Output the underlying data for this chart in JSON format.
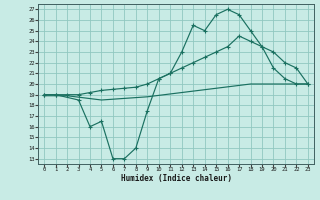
{
  "bg_color": "#c8ebe5",
  "grid_color": "#90c8c0",
  "line_color": "#1a7060",
  "xlim": [
    -0.5,
    23.5
  ],
  "ylim": [
    12.5,
    27.5
  ],
  "xticks": [
    0,
    1,
    2,
    3,
    4,
    5,
    6,
    7,
    8,
    9,
    10,
    11,
    12,
    13,
    14,
    15,
    16,
    17,
    18,
    19,
    20,
    21,
    22,
    23
  ],
  "yticks": [
    13,
    14,
    15,
    16,
    17,
    18,
    19,
    20,
    21,
    22,
    23,
    24,
    25,
    26,
    27
  ],
  "xlabel": "Humidex (Indice chaleur)",
  "line1_x": [
    0,
    1,
    3,
    4,
    5,
    6,
    7,
    8,
    9,
    10,
    11,
    12,
    13,
    14,
    15,
    16,
    17,
    18,
    19,
    20,
    21,
    22,
    23
  ],
  "line1_y": [
    19,
    19,
    18.5,
    16,
    16.5,
    13,
    13,
    14,
    17.5,
    20.5,
    21,
    23,
    25.5,
    25,
    26.5,
    27,
    26.5,
    25,
    23.5,
    21.5,
    20.5,
    20,
    20
  ],
  "line2_x": [
    0,
    1,
    2,
    3,
    4,
    5,
    6,
    7,
    8,
    9,
    10,
    11,
    12,
    13,
    14,
    15,
    16,
    17,
    18,
    19,
    20,
    21,
    22,
    23
  ],
  "line2_y": [
    19,
    19,
    19,
    19,
    19.2,
    19.4,
    19.5,
    19.6,
    19.7,
    20,
    20.5,
    21,
    21.5,
    22,
    22.5,
    23,
    23.5,
    24.5,
    24,
    23.5,
    23,
    22,
    21.5,
    20
  ],
  "line3_x": [
    0,
    2,
    5,
    9,
    18,
    23
  ],
  "line3_y": [
    18.9,
    18.9,
    18.5,
    18.8,
    20,
    20
  ]
}
